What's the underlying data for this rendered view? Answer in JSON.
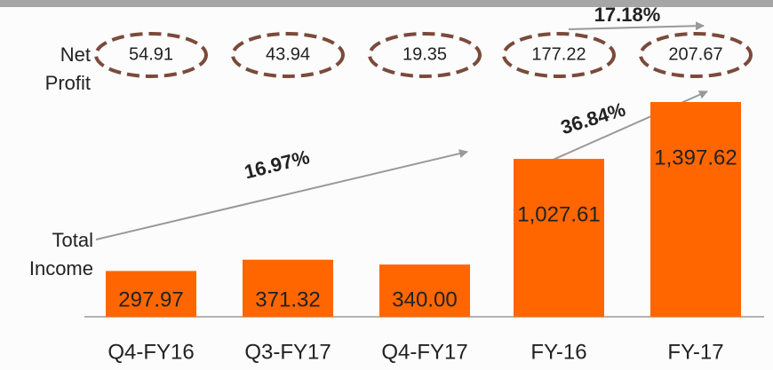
{
  "chart_data": {
    "type": "bar",
    "categories": [
      "Q4-FY16",
      "Q3-FY17",
      "Q4-FY17",
      "FY-16",
      "FY-17"
    ],
    "series": [
      {
        "name": "Total Income",
        "color": "#ff6600",
        "values": [
          297.97,
          371.32,
          340.0,
          1027.61,
          1397.62
        ],
        "value_labels": [
          "297.97",
          "371.32",
          "340.00",
          "1,027.61",
          "1,397.62"
        ]
      },
      {
        "name": "Net Profit",
        "color": "#7b4a3a",
        "values": [
          54.91,
          43.94,
          19.35,
          177.22,
          207.67
        ]
      }
    ],
    "annotations": [
      "16.97%",
      "36.84%",
      "17.18%"
    ]
  }
}
